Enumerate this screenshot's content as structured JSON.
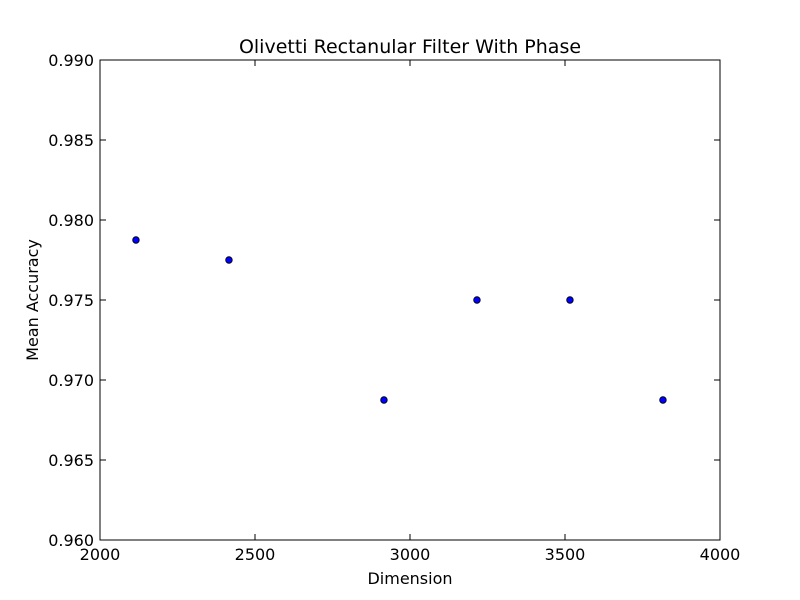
{
  "chart_data": {
    "type": "scatter",
    "title": "Olivetti Rectanular Filter With Phase",
    "xlabel": "Dimension",
    "ylabel": "Mean Accuracy",
    "xlim": [
      2000,
      4000
    ],
    "ylim": [
      0.96,
      0.99
    ],
    "xticks": [
      2000,
      2500,
      3000,
      3500,
      4000
    ],
    "xtick_labels": [
      "2000",
      "2500",
      "3000",
      "3500",
      "4000"
    ],
    "yticks": [
      0.96,
      0.965,
      0.97,
      0.975,
      0.98,
      0.985,
      0.99
    ],
    "ytick_labels": [
      "0.960",
      "0.965",
      "0.970",
      "0.975",
      "0.980",
      "0.985",
      "0.990"
    ],
    "grid": false,
    "legend": "none",
    "marker_color": "#0000ff",
    "points": [
      {
        "x": 2116,
        "y": 0.97875
      },
      {
        "x": 2416,
        "y": 0.9775
      },
      {
        "x": 2916,
        "y": 0.96875
      },
      {
        "x": 3216,
        "y": 0.975
      },
      {
        "x": 3516,
        "y": 0.975
      },
      {
        "x": 3816,
        "y": 0.96875
      }
    ]
  }
}
